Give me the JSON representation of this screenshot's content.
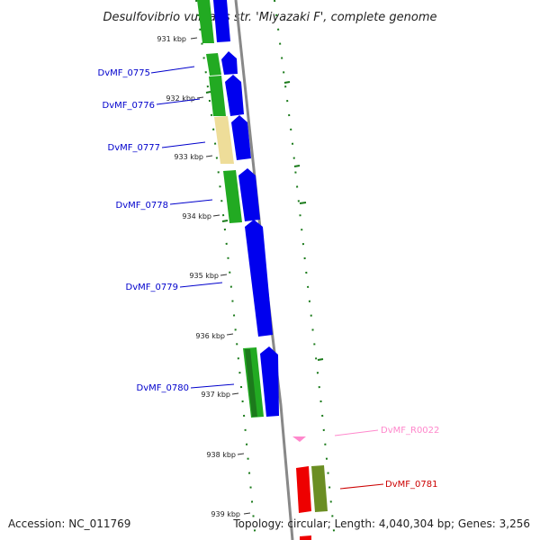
{
  "title": "Desulfovibrio vulgaris str. 'Miyazaki F', complete genome",
  "footer": {
    "accession": "Accession: NC_011769",
    "topology": "Topology: circular; Length: 4,040,304 bp; Genes: 3,256"
  },
  "colors": {
    "cds_forward": "#0000ee",
    "cog_green": "#22aa22",
    "cog_yellow": "#eedd99",
    "cog_olive": "#6b8e23",
    "rna_pink": "#ff88cc",
    "cds_red": "#ee0000",
    "backbone": "#888888",
    "gc_skew": "#1a7a1a"
  },
  "ticks": [
    {
      "label": "931 kbp"
    },
    {
      "label": "932 kbp"
    },
    {
      "label": "933 kbp"
    },
    {
      "label": "934 kbp"
    },
    {
      "label": "935 kbp"
    },
    {
      "label": "936 kbp"
    },
    {
      "label": "937 kbp"
    },
    {
      "label": "938 kbp"
    },
    {
      "label": "939 kbp"
    }
  ],
  "genes": [
    {
      "label": "DvMF_0775",
      "color": "#0000cc"
    },
    {
      "label": "DvMF_0776",
      "color": "#0000cc"
    },
    {
      "label": "DvMF_0777",
      "color": "#0000cc"
    },
    {
      "label": "DvMF_0778",
      "color": "#0000cc"
    },
    {
      "label": "DvMF_0779",
      "color": "#0000cc"
    },
    {
      "label": "DvMF_0780",
      "color": "#0000cc"
    },
    {
      "label": "DvMF_R0022",
      "color": "#ff88cc"
    },
    {
      "label": "DvMF_0781",
      "color": "#cc0000"
    }
  ]
}
